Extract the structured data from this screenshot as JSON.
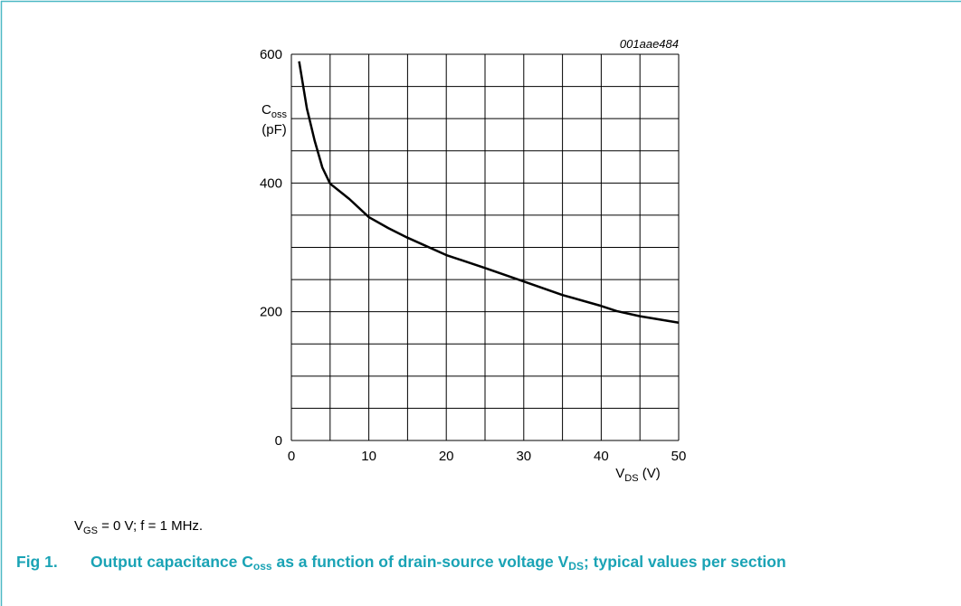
{
  "chart_data": {
    "type": "line",
    "figure_id": "001aae484",
    "y_label": {
      "main": "C",
      "sub": "oss",
      "unit": "(pF)"
    },
    "x_label": {
      "main": "V",
      "sub": "DS",
      "unit": " (V)"
    },
    "x": [
      1,
      2,
      3,
      4,
      5,
      7.5,
      10,
      12.5,
      15,
      20,
      25,
      30,
      35,
      40,
      42,
      45,
      50
    ],
    "values": [
      589,
      516,
      466,
      424,
      399,
      375,
      347,
      330,
      315,
      288,
      268,
      247,
      226,
      209,
      201,
      193,
      183
    ],
    "color": "#000000",
    "xlim": [
      0,
      50
    ],
    "xticks": [
      0,
      10,
      20,
      30,
      40,
      50
    ],
    "xminor": [
      5,
      15,
      25,
      35,
      45
    ],
    "ylim": [
      0,
      600
    ],
    "yticks": [
      0,
      200,
      400,
      600
    ],
    "yminor": [
      50,
      100,
      150,
      250,
      300,
      350,
      450,
      500,
      550
    ],
    "grid": true,
    "note": [
      "V",
      "GS",
      " = 0 V; f = 1 MHz."
    ],
    "caption": {
      "label": "Fig 1.",
      "parts": [
        "Output capacitance C",
        "oss",
        " as a function of drain-source voltage V",
        "DS",
        "; typical values per section"
      ]
    }
  }
}
